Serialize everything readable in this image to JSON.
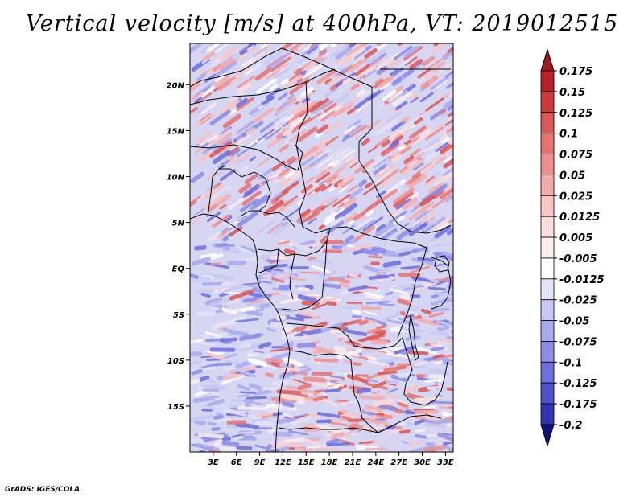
{
  "title": "Vertical velocity [m/s] at 400hPa, VT: 2019012515",
  "credit": "GrADS: IGES/COLA",
  "map": {
    "lon_range": [
      0,
      34
    ],
    "lat_range": [
      -20,
      24.5
    ],
    "lon_ticks": [
      {
        "value": 3,
        "label": "3E"
      },
      {
        "value": 6,
        "label": "6E"
      },
      {
        "value": 9,
        "label": "9E"
      },
      {
        "value": 12,
        "label": "12E"
      },
      {
        "value": 15,
        "label": "15E"
      },
      {
        "value": 18,
        "label": "18E"
      },
      {
        "value": 21,
        "label": "21E"
      },
      {
        "value": 24,
        "label": "24E"
      },
      {
        "value": 27,
        "label": "27E"
      },
      {
        "value": 30,
        "label": "30E"
      },
      {
        "value": 33,
        "label": "33E"
      }
    ],
    "lat_ticks": [
      {
        "value": 20,
        "label": "20N"
      },
      {
        "value": 15,
        "label": "15N"
      },
      {
        "value": 10,
        "label": "10N"
      },
      {
        "value": 5,
        "label": "5N"
      },
      {
        "value": 0,
        "label": "EQ"
      },
      {
        "value": -5,
        "label": "5S"
      },
      {
        "value": -10,
        "label": "10S"
      },
      {
        "value": -15,
        "label": "15S"
      }
    ]
  },
  "colorbar": {
    "levels": [
      {
        "label": "0.175",
        "color": "#b8202a"
      },
      {
        "label": "0.15",
        "color": "#cc3a3e"
      },
      {
        "label": "0.125",
        "color": "#dc5656"
      },
      {
        "label": "0.1",
        "color": "#e67272"
      },
      {
        "label": "0.075",
        "color": "#ee8e8e"
      },
      {
        "label": "0.05",
        "color": "#f4abab"
      },
      {
        "label": "0.025",
        "color": "#f9c6c6"
      },
      {
        "label": "0.0125",
        "color": "#fcdede"
      },
      {
        "label": "0.005",
        "color": "#fdeeee"
      },
      {
        "label": "-0.005",
        "color": "#ffffff"
      },
      {
        "label": "-0.0125",
        "color": "#e4e4fa"
      },
      {
        "label": "-0.025",
        "color": "#c8c8f4"
      },
      {
        "label": "-0.05",
        "color": "#aaaaee"
      },
      {
        "label": "-0.075",
        "color": "#8c8ce6"
      },
      {
        "label": "-0.1",
        "color": "#6e6edc"
      },
      {
        "label": "-0.125",
        "color": "#5050cc"
      },
      {
        "label": "-0.175",
        "color": "#3434b4"
      },
      {
        "label": "-0.2",
        "color": "#20209a"
      }
    ],
    "top_color": "#a01820",
    "bottom_color": "#101080"
  }
}
